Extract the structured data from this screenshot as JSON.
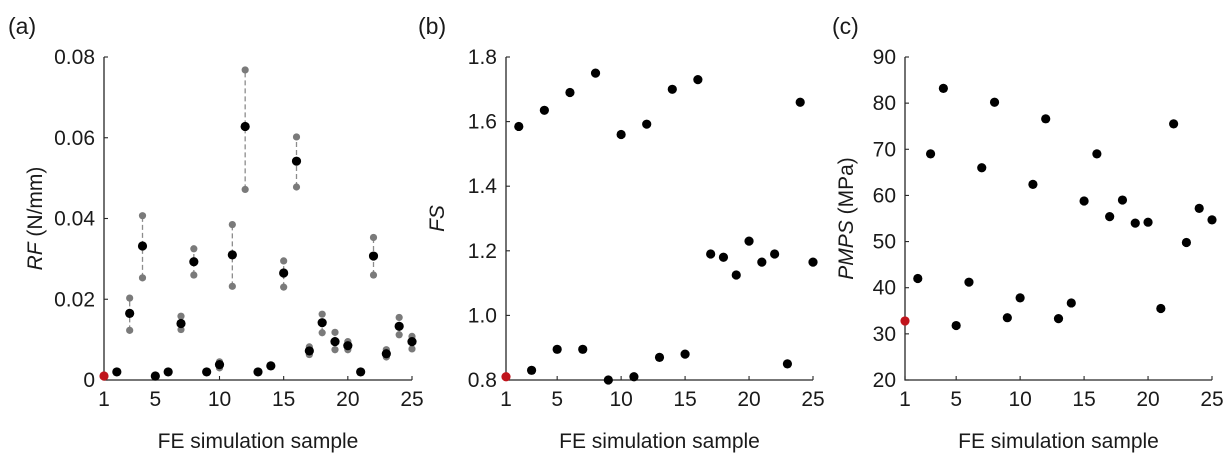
{
  "colors": {
    "point": "#000000",
    "baseline": "#c0141c",
    "bound": "#7a7a7a",
    "errbar": "#8c8c8c"
  },
  "chart_data": [
    {
      "type": "scatter",
      "panel_label": "(a)",
      "xlabel": "FE simulation sample",
      "ylabel_italic": "RF",
      "ylabel_rest": " (N/mm)",
      "xlim": [
        1,
        25
      ],
      "ylim": [
        0,
        0.08
      ],
      "xticks": [
        1,
        5,
        10,
        15,
        20,
        25
      ],
      "yticks": [
        0,
        0.02,
        0.04,
        0.06,
        0.08
      ],
      "ytick_labels": [
        "0",
        "0.02",
        "0.04",
        "0.06",
        "0.08"
      ],
      "baseline_point": {
        "x": 1,
        "y": 0.001
      },
      "x": [
        2,
        3,
        4,
        5,
        6,
        7,
        8,
        9,
        10,
        11,
        12,
        13,
        14,
        15,
        16,
        17,
        18,
        19,
        20,
        21,
        22,
        23,
        24,
        25
      ],
      "y": [
        0.002,
        0.0165,
        0.0332,
        0.001,
        0.002,
        0.014,
        0.0293,
        0.002,
        0.0038,
        0.031,
        0.0628,
        0.002,
        0.0035,
        0.0265,
        0.0542,
        0.0072,
        0.0142,
        0.0095,
        0.0085,
        0.002,
        0.0307,
        0.0065,
        0.0133,
        0.0095
      ],
      "lower": [
        null,
        0.0123,
        0.0253,
        null,
        null,
        0.0125,
        0.026,
        null,
        0.003,
        0.0232,
        0.0472,
        null,
        null,
        0.023,
        0.0478,
        0.0063,
        0.0117,
        0.0075,
        0.0075,
        null,
        0.026,
        0.0057,
        0.0112,
        0.0077
      ],
      "upper": [
        null,
        0.0203,
        0.0407,
        null,
        null,
        0.0158,
        0.0325,
        null,
        0.0045,
        0.0385,
        0.0768,
        null,
        null,
        0.0295,
        0.0602,
        0.0082,
        0.0163,
        0.0118,
        0.0095,
        null,
        0.0353,
        0.0075,
        0.0155,
        0.0108
      ]
    },
    {
      "type": "scatter",
      "panel_label": "(b)",
      "xlabel": "FE simulation sample",
      "ylabel_italic": "FS",
      "ylabel_rest": "",
      "xlim": [
        1,
        25
      ],
      "ylim": [
        0.8,
        1.8
      ],
      "xticks": [
        1,
        5,
        10,
        15,
        20,
        25
      ],
      "yticks": [
        0.8,
        1.0,
        1.2,
        1.4,
        1.6,
        1.8
      ],
      "ytick_labels": [
        "0.8",
        "1.0",
        "1.2",
        "1.4",
        "1.6",
        "1.8"
      ],
      "baseline_point": {
        "x": 1,
        "y": 0.81
      },
      "x": [
        2,
        3,
        4,
        5,
        6,
        7,
        8,
        9,
        10,
        11,
        12,
        13,
        14,
        15,
        16,
        17,
        18,
        19,
        20,
        21,
        22,
        23,
        24,
        25
      ],
      "y": [
        1.585,
        0.83,
        1.635,
        0.895,
        1.69,
        0.895,
        1.75,
        0.8,
        1.56,
        0.81,
        1.592,
        0.87,
        1.7,
        0.88,
        1.73,
        1.19,
        1.18,
        1.125,
        1.23,
        1.165,
        1.19,
        0.85,
        1.66,
        1.165
      ]
    },
    {
      "type": "scatter",
      "panel_label": "(c)",
      "xlabel": "FE simulation sample",
      "ylabel_italic": "PMPS",
      "ylabel_rest": " (MPa)",
      "xlim": [
        1,
        25
      ],
      "ylim": [
        20,
        90
      ],
      "xticks": [
        1,
        5,
        10,
        15,
        20,
        25
      ],
      "yticks": [
        20,
        30,
        40,
        50,
        60,
        70,
        80,
        90
      ],
      "ytick_labels": [
        "20",
        "30",
        "40",
        "50",
        "60",
        "70",
        "80",
        "90"
      ],
      "baseline_point": {
        "x": 1,
        "y": 32.8
      },
      "x": [
        2,
        3,
        4,
        5,
        6,
        7,
        8,
        9,
        10,
        11,
        12,
        13,
        14,
        15,
        16,
        17,
        18,
        19,
        20,
        21,
        22,
        23,
        24,
        25
      ],
      "y": [
        42,
        69,
        83.2,
        31.8,
        41.2,
        66,
        80.2,
        33.5,
        37.8,
        62.4,
        76.6,
        33.3,
        36.7,
        58.8,
        69,
        55.4,
        59,
        54,
        54.2,
        35.5,
        75.5,
        49.8,
        57.2,
        54.7
      ]
    }
  ]
}
